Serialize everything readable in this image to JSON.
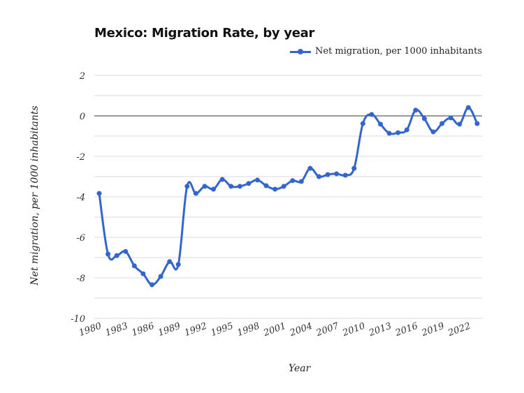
{
  "chart_data": {
    "type": "line",
    "title": "Mexico: Migration Rate, by year",
    "xlabel": "Year",
    "ylabel": "Net migration, per 1000 inhabitants",
    "ylim": [
      -10,
      2
    ],
    "yticks": [
      "2",
      "0",
      "-2",
      "-4",
      "-6",
      "-8",
      "-10"
    ],
    "xticks": [
      "1980",
      "1983",
      "1986",
      "1989",
      "1992",
      "1995",
      "1998",
      "2001",
      "2004",
      "2007",
      "2010",
      "2013",
      "2016",
      "2019",
      "2022"
    ],
    "grid": true,
    "legend_position": "top-right",
    "series": [
      {
        "name": "Net migration, per 1000 inhabitants",
        "color": "#3366cc",
        "x": [
          1980,
          1981,
          1982,
          1983,
          1984,
          1985,
          1986,
          1987,
          1988,
          1989,
          1990,
          1991,
          1992,
          1993,
          1994,
          1995,
          1996,
          1997,
          1998,
          1999,
          2000,
          2001,
          2002,
          2003,
          2004,
          2005,
          2006,
          2007,
          2008,
          2009,
          2010,
          2011,
          2012,
          2013,
          2014,
          2015,
          2016,
          2017,
          2018,
          2019,
          2020,
          2021,
          2022,
          2023
        ],
        "values": [
          -3.83,
          -6.83,
          -6.9,
          -6.7,
          -7.41,
          -7.8,
          -8.34,
          -7.93,
          -7.2,
          -7.34,
          -3.48,
          -3.83,
          -3.48,
          -3.62,
          -3.14,
          -3.48,
          -3.48,
          -3.34,
          -3.17,
          -3.45,
          -3.62,
          -3.48,
          -3.2,
          -3.24,
          -2.59,
          -3.0,
          -2.9,
          -2.86,
          -2.93,
          -2.59,
          -0.38,
          0.07,
          -0.41,
          -0.86,
          -0.83,
          -0.69,
          0.28,
          -0.14,
          -0.79,
          -0.38,
          -0.1,
          -0.41,
          0.41,
          -0.38
        ]
      }
    ]
  }
}
